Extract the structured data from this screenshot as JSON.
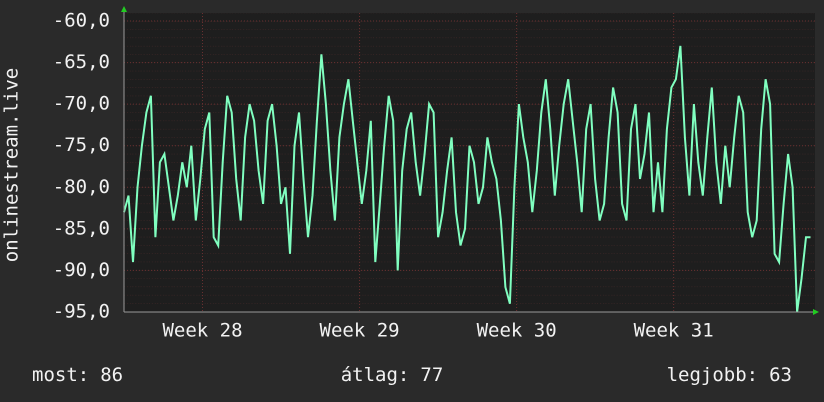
{
  "chart_data": {
    "type": "line",
    "ylabel": "onlinestream.live",
    "x": [
      0,
      0.2,
      0.4,
      0.6,
      0.8,
      1,
      1.2,
      1.4,
      1.6,
      1.8,
      2,
      2.2,
      2.4,
      2.6,
      2.8,
      3,
      3.2,
      3.4,
      3.6,
      3.8,
      4,
      4.2,
      4.4,
      4.6,
      4.8,
      5,
      5.2,
      5.4,
      5.6,
      5.8,
      6,
      6.2,
      6.4,
      6.6,
      6.8,
      7,
      7.2,
      7.4,
      7.6,
      7.8,
      8,
      8.2,
      8.4,
      8.6,
      8.8,
      9,
      9.2,
      9.4,
      9.6,
      9.8,
      10,
      10.2,
      10.4,
      10.6,
      10.8,
      11,
      11.2,
      11.4,
      11.6,
      11.8,
      12,
      12.2,
      12.4,
      12.6,
      12.8,
      13,
      13.2,
      13.4,
      13.6,
      13.8,
      14,
      14.2,
      14.4,
      14.6,
      14.8,
      15,
      15.2,
      15.4,
      15.6,
      15.8,
      16,
      16.2,
      16.4,
      16.6,
      16.8,
      17,
      17.2,
      17.4,
      17.6,
      17.8,
      18,
      18.2,
      18.4,
      18.6,
      18.8,
      19,
      19.2,
      19.4,
      19.6,
      19.8,
      20,
      20.2,
      20.4,
      20.6,
      20.8,
      21,
      21.2,
      21.4,
      21.6,
      21.8,
      22,
      22.2,
      22.4,
      22.6,
      22.8,
      23,
      23.2,
      23.4,
      23.6,
      23.8,
      24,
      24.2,
      24.4,
      24.6,
      24.8,
      25,
      25.2,
      25.4,
      25.6,
      25.8,
      26,
      26.2,
      26.4,
      26.6,
      26.8,
      27,
      27.2,
      27.4,
      27.6,
      27.8,
      28,
      28.2,
      28.4,
      28.6,
      28.8,
      29,
      29.2,
      29.4,
      29.6,
      29.8,
      30,
      30.2,
      30.4,
      30.6
    ],
    "series": [
      {
        "name": "onlinestream.live",
        "color": "#80ffc0",
        "values": [
          -83,
          -81,
          -89,
          -80,
          -75,
          -71,
          -69,
          -86,
          -77,
          -76,
          -80,
          -84,
          -81,
          -77,
          -80,
          -75,
          -84,
          -79,
          -73,
          -71,
          -86,
          -87,
          -77,
          -69,
          -71,
          -79,
          -84,
          -74,
          -70,
          -72,
          -78,
          -82,
          -72,
          -70,
          -75,
          -82,
          -80,
          -88,
          -75,
          -71,
          -79,
          -86,
          -81,
          -72,
          -64,
          -70,
          -78,
          -84,
          -74,
          -70,
          -67,
          -72,
          -77,
          -82,
          -78,
          -72,
          -89,
          -82,
          -75,
          -69,
          -72,
          -90,
          -78,
          -73,
          -71,
          -77,
          -81,
          -76,
          -70,
          -71,
          -86,
          -83,
          -78,
          -74,
          -83,
          -87,
          -85,
          -75,
          -77,
          -82,
          -80,
          -74,
          -77,
          -79,
          -84,
          -92,
          -94,
          -80,
          -70,
          -74,
          -77,
          -83,
          -78,
          -71,
          -67,
          -73,
          -81,
          -75,
          -70,
          -67,
          -72,
          -77,
          -83,
          -73,
          -70,
          -79,
          -84,
          -82,
          -74,
          -68,
          -71,
          -82,
          -84,
          -73,
          -70,
          -79,
          -76,
          -71,
          -83,
          -77,
          -83,
          -73,
          -68,
          -67,
          -63,
          -74,
          -81,
          -70,
          -77,
          -81,
          -74,
          -68,
          -77,
          -82,
          -75,
          -80,
          -74,
          -69,
          -71,
          -83,
          -86,
          -84,
          -73,
          -67,
          -70,
          -88,
          -89,
          -82,
          -76,
          -80,
          -95,
          -91,
          -86,
          -86
        ]
      }
    ],
    "xlim": [
      0,
      30.8
    ],
    "xticks": [
      {
        "value": 3.5,
        "label": "Week 28"
      },
      {
        "value": 10.5,
        "label": "Week 29"
      },
      {
        "value": 17.5,
        "label": "Week 30"
      },
      {
        "value": 24.5,
        "label": "Week 31"
      }
    ],
    "ylim": [
      -95,
      -60
    ],
    "yticks": [
      {
        "value": -95,
        "label": "-95,0"
      },
      {
        "value": -90,
        "label": "-90,0"
      },
      {
        "value": -85,
        "label": "-85,0"
      },
      {
        "value": -80,
        "label": "-80,0"
      },
      {
        "value": -75,
        "label": "-75,0"
      },
      {
        "value": -70,
        "label": "-70,0"
      },
      {
        "value": -65,
        "label": "-65,0"
      },
      {
        "value": -60,
        "label": "-60,0"
      }
    ],
    "grid": true,
    "stats": [
      {
        "label": "most:",
        "value": 86
      },
      {
        "label": "átlag:",
        "value": 77
      },
      {
        "label": "legjobb:",
        "value": 63
      }
    ]
  }
}
